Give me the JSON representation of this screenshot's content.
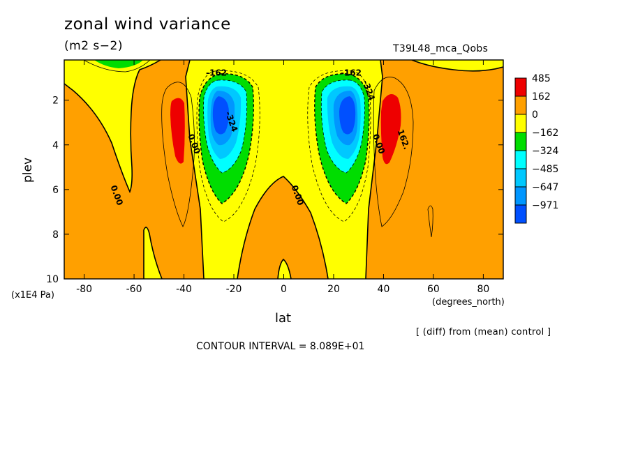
{
  "chart_data": {
    "type": "heatmap",
    "title": "zonal wind variance",
    "units": "(m2 s−2)",
    "run_name": "T39L48_mca_Qobs",
    "xlabel": "lat",
    "x_units": "(degrees_north)",
    "ylabel": "plev",
    "y_units": "(x1E4 Pa)",
    "xlim": [
      -88,
      88
    ],
    "ylim": [
      10,
      0.2
    ],
    "x_ticks": [
      -80,
      -60,
      -40,
      -20,
      0,
      20,
      40,
      60,
      80
    ],
    "y_ticks": [
      2,
      4,
      6,
      8,
      10
    ],
    "note": "[ (diff) from (mean) control ]",
    "contour_interval_text": "CONTOUR INTERVAL = 8.089E+01",
    "legend": {
      "levels": [
        "485",
        "162",
        "0",
        "−162",
        "−324",
        "−485",
        "−647",
        "−971"
      ],
      "colors": [
        "#ee0000",
        "#ffa000",
        "#ffff00",
        "#00dd00",
        "#00ffff",
        "#00c8ff",
        "#0096ff",
        "#0050ff"
      ]
    },
    "contour_labels": [
      {
        "text": "-162",
        "lat": -27,
        "plev": 0.9
      },
      {
        "text": "-324",
        "lat": -22,
        "plev": 3.0
      },
      {
        "text": "0.00",
        "lat": -37,
        "plev": 4.0
      },
      {
        "text": "0.00",
        "lat": -68,
        "plev": 6.3
      },
      {
        "text": "0.00",
        "lat": 4.5,
        "plev": 6.3
      },
      {
        "text": "-162",
        "lat": 27,
        "plev": 0.9
      },
      {
        "text": "-324",
        "lat": 33,
        "plev": 1.6
      },
      {
        "text": "0.00",
        "lat": 37,
        "plev": 4.0
      },
      {
        "text": "162.",
        "lat": 47,
        "plev": 3.8
      }
    ]
  }
}
